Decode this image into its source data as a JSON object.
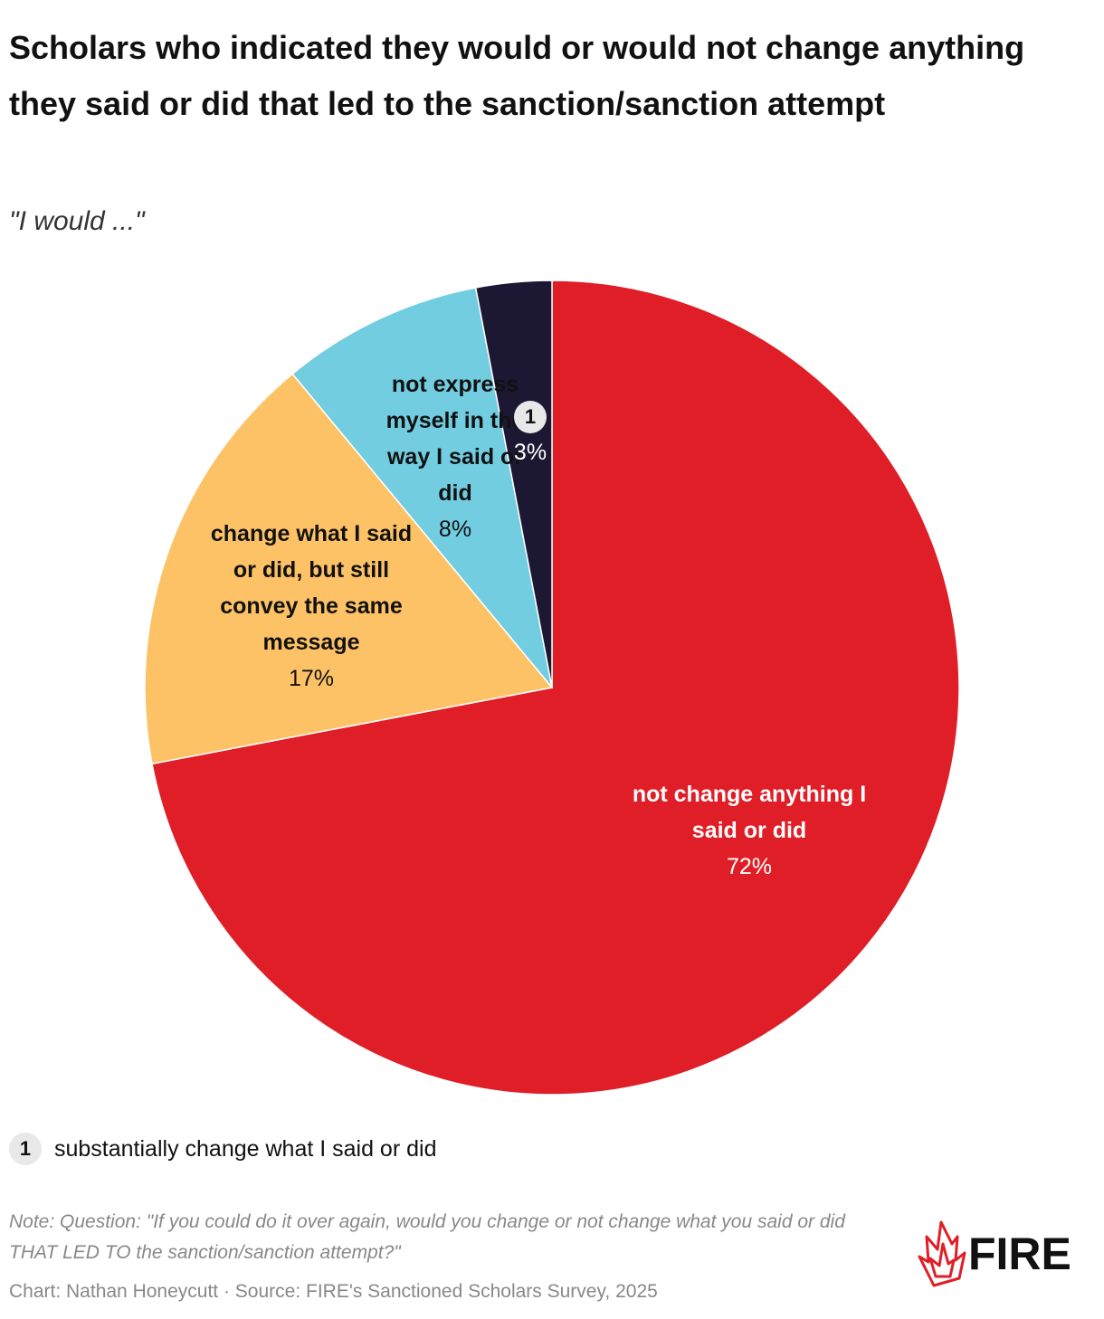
{
  "chart_data": {
    "type": "pie",
    "title": "Scholars who indicated they would or would not change anything they said or did that led to the sanction/sanction attempt",
    "subtitle": "\"I would ...\"",
    "categories": [
      "not change anything I said or did",
      "change what I said or did, but still convey the same message",
      "not express myself in the way I said or did",
      "substantially change what I said or did"
    ],
    "values": [
      72,
      17,
      8,
      3
    ],
    "value_labels": [
      "72%",
      "17%",
      "8%",
      "3%"
    ],
    "colors": [
      "#e01e27",
      "#fdc266",
      "#72cde0",
      "#1c1834"
    ],
    "footnote_marker": "1",
    "note": "Note: Question: \"If you could do it over again, would you change or not change what you said or did THAT LED TO the sanction/sanction attempt?\"",
    "credit": "Chart: Nathan Honeycutt · Source: FIRE's Sanctioned Scholars Survey, 2025",
    "logo": "FIRE"
  }
}
